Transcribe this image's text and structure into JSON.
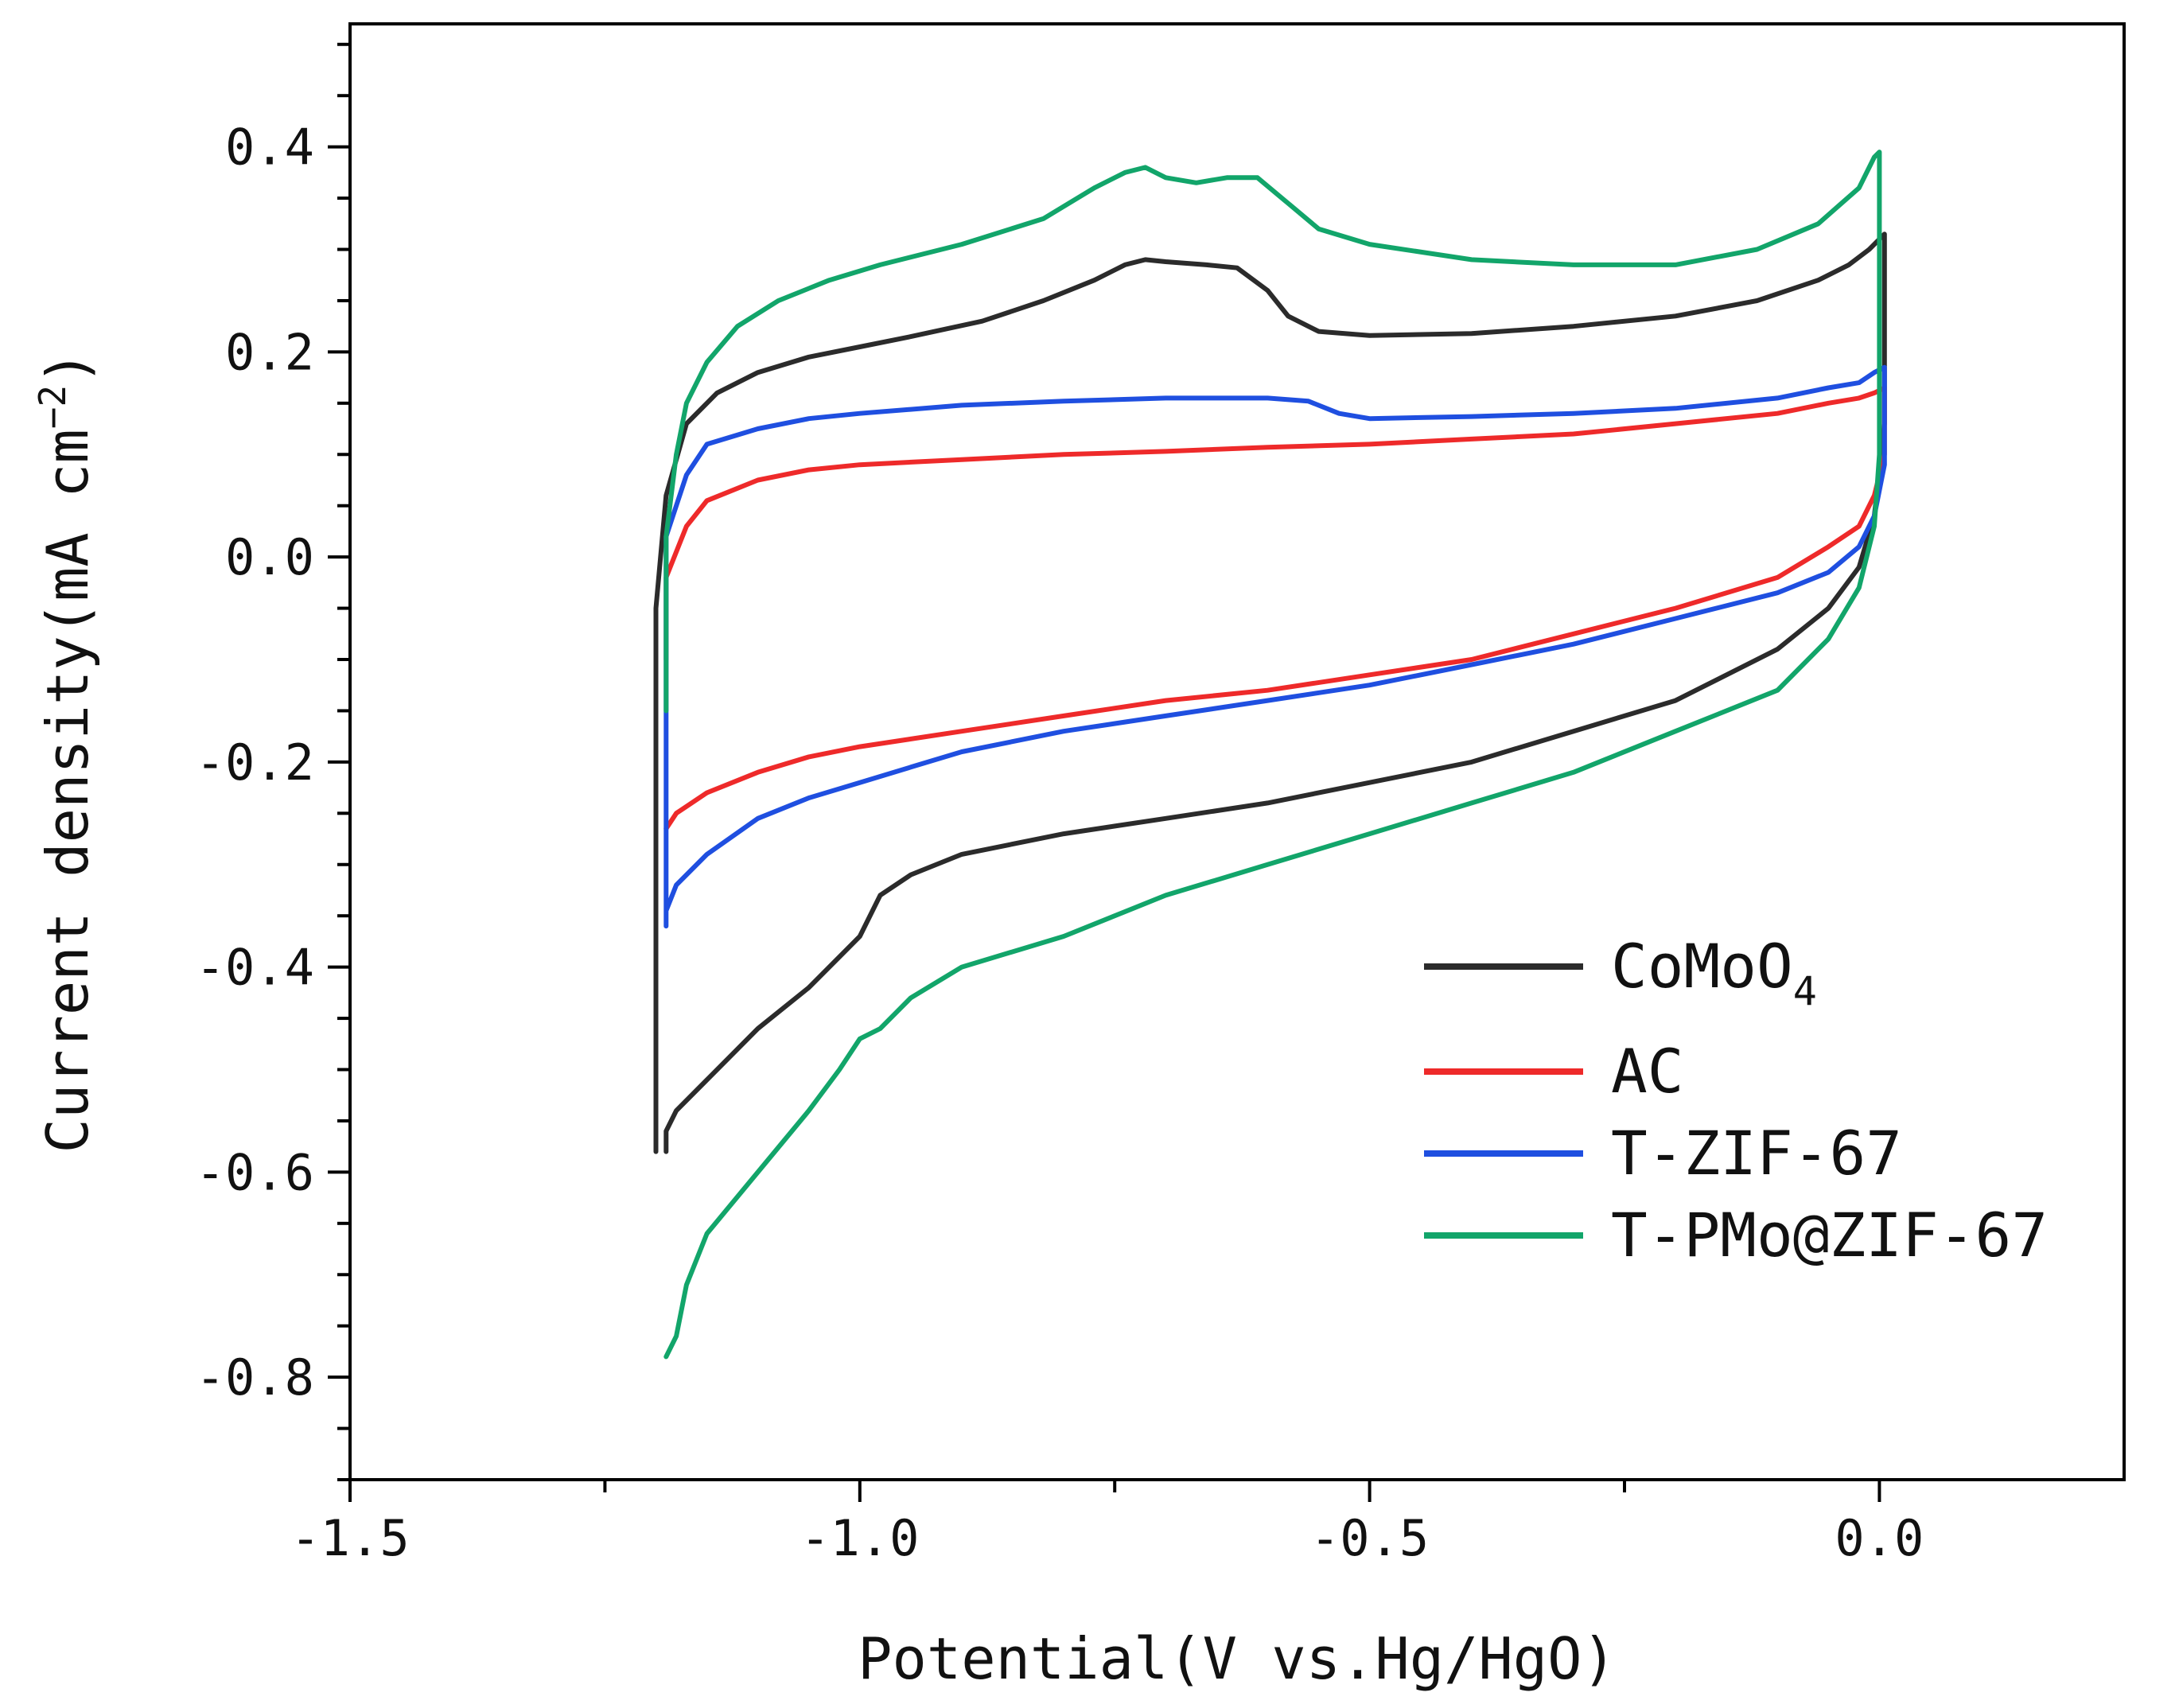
{
  "chart_data": {
    "type": "line",
    "title": "",
    "xlabel": "Potential(V vs.Hg/HgO)",
    "ylabel": "Current density(mA cm",
    "ylabel_sup": "−2",
    "ylabel_end": ")",
    "xlim": [
      -1.5,
      0.24
    ],
    "ylim": [
      -0.9,
      0.52
    ],
    "xticks": [
      -1.5,
      -1.0,
      -0.5,
      0.0
    ],
    "xtick_labels": [
      "-1.5",
      "-1.0",
      "-0.5",
      "0.0"
    ],
    "yticks": [
      0.4,
      0.2,
      0.0,
      -0.2,
      -0.4,
      -0.6,
      -0.8
    ],
    "ytick_labels": [
      "0.4",
      "0.2",
      "0.0",
      "-0.2",
      "-0.4",
      "-0.6",
      "-0.8"
    ],
    "grid": false,
    "legend_position": "bottom-right",
    "series": [
      {
        "name": "CoMoO",
        "subscript": "4",
        "color": "#2b2b2b",
        "x": [
          -1.2,
          -1.2,
          -1.19,
          -1.17,
          -1.14,
          -1.1,
          -1.05,
          -1.0,
          -0.95,
          -0.88,
          -0.82,
          -0.77,
          -0.74,
          -0.72,
          -0.7,
          -0.66,
          -0.63,
          -0.6,
          -0.58,
          -0.55,
          -0.5,
          -0.4,
          -0.3,
          -0.2,
          -0.12,
          -0.06,
          -0.03,
          -0.01,
          0.005,
          0.005,
          -0.005,
          -0.02,
          -0.05,
          -0.1,
          -0.2,
          -0.3,
          -0.4,
          -0.5,
          -0.6,
          -0.7,
          -0.8,
          -0.9,
          -0.95,
          -0.98,
          -1.0,
          -1.02,
          -1.05,
          -1.1,
          -1.15,
          -1.18,
          -1.19,
          -1.19
        ],
        "y": [
          -0.58,
          -0.05,
          0.06,
          0.13,
          0.16,
          0.18,
          0.195,
          0.205,
          0.215,
          0.23,
          0.25,
          0.27,
          0.285,
          0.29,
          0.288,
          0.285,
          0.282,
          0.26,
          0.235,
          0.22,
          0.216,
          0.218,
          0.225,
          0.235,
          0.25,
          0.27,
          0.285,
          0.3,
          0.315,
          0.13,
          0.04,
          -0.01,
          -0.05,
          -0.09,
          -0.14,
          -0.17,
          -0.2,
          -0.22,
          -0.24,
          -0.255,
          -0.27,
          -0.29,
          -0.31,
          -0.33,
          -0.37,
          -0.39,
          -0.42,
          -0.46,
          -0.51,
          -0.54,
          -0.56,
          -0.58
        ]
      },
      {
        "name": "AC",
        "color": "#ee2a2a",
        "x": [
          -1.19,
          -1.19,
          -1.17,
          -1.15,
          -1.1,
          -1.05,
          -1.0,
          -0.9,
          -0.8,
          -0.7,
          -0.6,
          -0.5,
          -0.4,
          -0.3,
          -0.2,
          -0.1,
          -0.05,
          -0.02,
          -0.005,
          0.005,
          0.005,
          -0.005,
          -0.02,
          -0.05,
          -0.1,
          -0.2,
          -0.3,
          -0.4,
          -0.5,
          -0.6,
          -0.7,
          -0.8,
          -0.9,
          -1.0,
          -1.05,
          -1.1,
          -1.15,
          -1.18,
          -1.19
        ],
        "y": [
          -0.1,
          -0.02,
          0.03,
          0.055,
          0.075,
          0.085,
          0.09,
          0.095,
          0.1,
          0.103,
          0.107,
          0.11,
          0.115,
          0.12,
          0.13,
          0.14,
          0.15,
          0.155,
          0.16,
          0.165,
          0.1,
          0.06,
          0.03,
          0.01,
          -0.02,
          -0.05,
          -0.075,
          -0.1,
          -0.115,
          -0.13,
          -0.14,
          -0.155,
          -0.17,
          -0.185,
          -0.195,
          -0.21,
          -0.23,
          -0.25,
          -0.265
        ]
      },
      {
        "name": "T-ZIF-67",
        "color": "#1f4fe0",
        "x": [
          -1.19,
          -1.19,
          -1.17,
          -1.15,
          -1.1,
          -1.05,
          -1.0,
          -0.9,
          -0.8,
          -0.7,
          -0.6,
          -0.56,
          -0.53,
          -0.5,
          -0.4,
          -0.3,
          -0.2,
          -0.1,
          -0.05,
          -0.02,
          -0.005,
          0.005,
          0.005,
          -0.005,
          -0.02,
          -0.05,
          -0.1,
          -0.2,
          -0.3,
          -0.4,
          -0.5,
          -0.6,
          -0.7,
          -0.8,
          -0.9,
          -0.95,
          -1.0,
          -1.05,
          -1.1,
          -1.15,
          -1.18,
          -1.19
        ],
        "y": [
          -0.36,
          0.02,
          0.08,
          0.11,
          0.125,
          0.135,
          0.14,
          0.148,
          0.152,
          0.155,
          0.155,
          0.152,
          0.14,
          0.135,
          0.137,
          0.14,
          0.145,
          0.155,
          0.165,
          0.17,
          0.18,
          0.185,
          0.09,
          0.04,
          0.01,
          -0.015,
          -0.035,
          -0.06,
          -0.085,
          -0.105,
          -0.125,
          -0.14,
          -0.155,
          -0.17,
          -0.19,
          -0.205,
          -0.22,
          -0.235,
          -0.255,
          -0.29,
          -0.32,
          -0.345
        ]
      },
      {
        "name": "T-PMo@ZIF-67",
        "color": "#12a56a",
        "x": [
          -1.19,
          -1.19,
          -1.18,
          -1.17,
          -1.15,
          -1.12,
          -1.08,
          -1.03,
          -0.98,
          -0.9,
          -0.82,
          -0.77,
          -0.74,
          -0.72,
          -0.7,
          -0.67,
          -0.64,
          -0.61,
          -0.58,
          -0.55,
          -0.5,
          -0.4,
          -0.3,
          -0.2,
          -0.12,
          -0.06,
          -0.02,
          -0.005,
          0.0,
          0.0,
          -0.005,
          -0.02,
          -0.05,
          -0.1,
          -0.2,
          -0.3,
          -0.4,
          -0.5,
          -0.6,
          -0.7,
          -0.8,
          -0.9,
          -0.95,
          -0.98,
          -1.0,
          -1.02,
          -1.05,
          -1.1,
          -1.15,
          -1.17,
          -1.18,
          -1.19
        ],
        "y": [
          -0.15,
          0.02,
          0.1,
          0.15,
          0.19,
          0.225,
          0.25,
          0.27,
          0.285,
          0.305,
          0.33,
          0.36,
          0.375,
          0.38,
          0.37,
          0.365,
          0.37,
          0.37,
          0.345,
          0.32,
          0.305,
          0.29,
          0.285,
          0.285,
          0.3,
          0.325,
          0.36,
          0.39,
          0.395,
          0.1,
          0.03,
          -0.03,
          -0.08,
          -0.13,
          -0.17,
          -0.21,
          -0.24,
          -0.27,
          -0.3,
          -0.33,
          -0.37,
          -0.4,
          -0.43,
          -0.46,
          -0.47,
          -0.5,
          -0.54,
          -0.6,
          -0.66,
          -0.71,
          -0.76,
          -0.78
        ]
      }
    ]
  }
}
